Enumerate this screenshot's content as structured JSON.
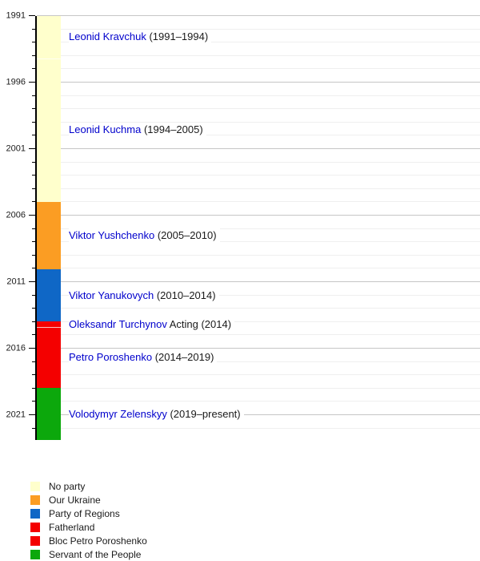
{
  "chart_data": {
    "type": "bar",
    "subtype": "vertical-timeline",
    "title": "",
    "xlabel": "",
    "ylabel": "",
    "axis": {
      "unit": "year",
      "start": 1991,
      "end": 2022.9,
      "direction": "top-to-bottom",
      "major_ticks": [
        1991,
        1996,
        2001,
        2006,
        2011,
        2016,
        2021
      ],
      "minor_tick_interval": 1,
      "minor_ticks_end": 2022,
      "grid": "on"
    },
    "segments": [
      {
        "name": "Leonid Kravchuk",
        "term_label": " (1991–1994)",
        "party": "No party",
        "color": "#FFFFCC",
        "plot_start": 1991,
        "plot_end": 1994.2,
        "seam": false
      },
      {
        "name": "Leonid Kuchma",
        "term_label": " (1994–2005)",
        "party": "No party",
        "color": "#FFFFCC",
        "plot_start": 1994.2,
        "plot_end": 2005,
        "seam": true
      },
      {
        "name": "Viktor Yushchenko",
        "term_label": " (2005–2010)",
        "party": "Our Ukraine",
        "color": "#FB9D23",
        "plot_start": 2005,
        "plot_end": 2010.05,
        "seam": false
      },
      {
        "name": "Viktor Yanukovych",
        "term_label": " (2010–2014)",
        "party": "Party of Regions",
        "color": "#0F67C6",
        "plot_start": 2010.05,
        "plot_end": 2014,
        "seam": false
      },
      {
        "name": "Oleksandr Turchynov",
        "term_label": " Acting (2014)",
        "party": "Fatherland",
        "color": "#F40000",
        "plot_start": 2014,
        "plot_end": 2014.4,
        "seam": false
      },
      {
        "name": "Petro Poroshenko",
        "term_label": " (2014–2019)",
        "party": "Bloc Petro Poroshenko",
        "color": "#F40000",
        "plot_start": 2014.4,
        "plot_end": 2019,
        "seam": true
      },
      {
        "name": "Volodymyr Zelenskyy",
        "term_label": " (2019–present)",
        "party": "Servant of the People",
        "color": "#0CA80C",
        "plot_start": 2019,
        "plot_end": 2022.9,
        "seam": false
      }
    ],
    "legend": [
      {
        "label": "No party",
        "color": "#FFFFCC"
      },
      {
        "label": "Our Ukraine",
        "color": "#FB9D23"
      },
      {
        "label": "Party of Regions",
        "color": "#0F67C6"
      },
      {
        "label": "Fatherland",
        "color": "#F40000"
      },
      {
        "label": "Bloc Petro Poroshenko",
        "color": "#F40000"
      },
      {
        "label": "Servant of the People",
        "color": "#0CA80C"
      }
    ],
    "legend_position": "bottom-left",
    "colors": {
      "link_text": "#0000CC",
      "text": "#1A1A1A",
      "axis": "#000000",
      "gridline_major": "#C6C6C6",
      "gridline_minor": "#EFEFEF",
      "background": "#FFFFFF"
    }
  }
}
